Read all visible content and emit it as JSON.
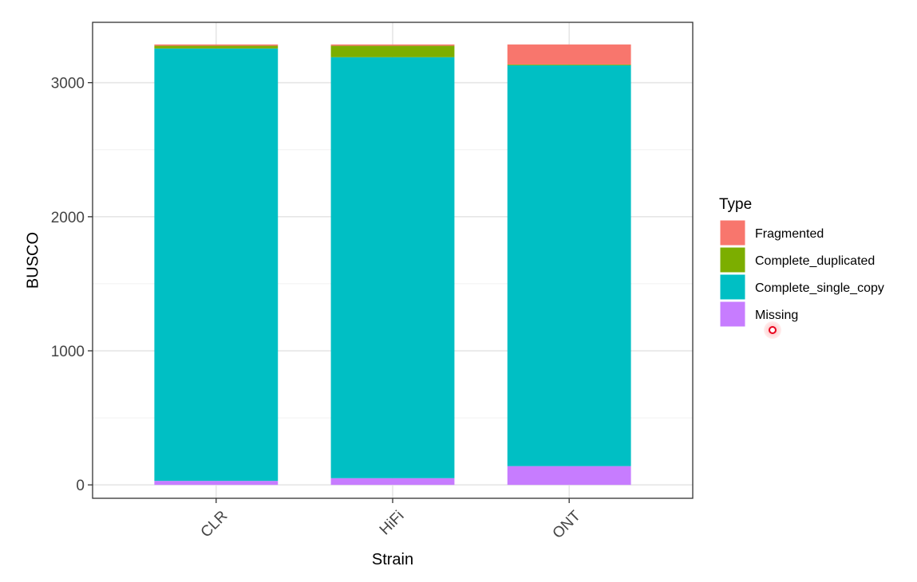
{
  "chart_data": {
    "type": "bar",
    "stacked": true,
    "categories": [
      "CLR",
      "HiFi",
      "ONT"
    ],
    "series": [
      {
        "name": "Missing",
        "color": "#C77CFF",
        "values": [
          30,
          50,
          140
        ]
      },
      {
        "name": "Complete_single_copy",
        "color": "#00BFC4",
        "values": [
          3225,
          3140,
          2990
        ]
      },
      {
        "name": "Complete_duplicated",
        "color": "#7CAE00",
        "values": [
          20,
          85,
          5
        ]
      },
      {
        "name": "Fragmented",
        "color": "#F8766D",
        "values": [
          10,
          10,
          150
        ]
      }
    ],
    "xlabel": "Strain",
    "ylabel": "BUSCO",
    "yticks": [
      0,
      1000,
      2000,
      3000
    ],
    "ylim": [
      -100,
      3450
    ],
    "legend_title": "Type",
    "legend_order": [
      "Fragmented",
      "Complete_duplicated",
      "Complete_single_copy",
      "Missing"
    ],
    "legend_position": "right",
    "grid": true
  }
}
